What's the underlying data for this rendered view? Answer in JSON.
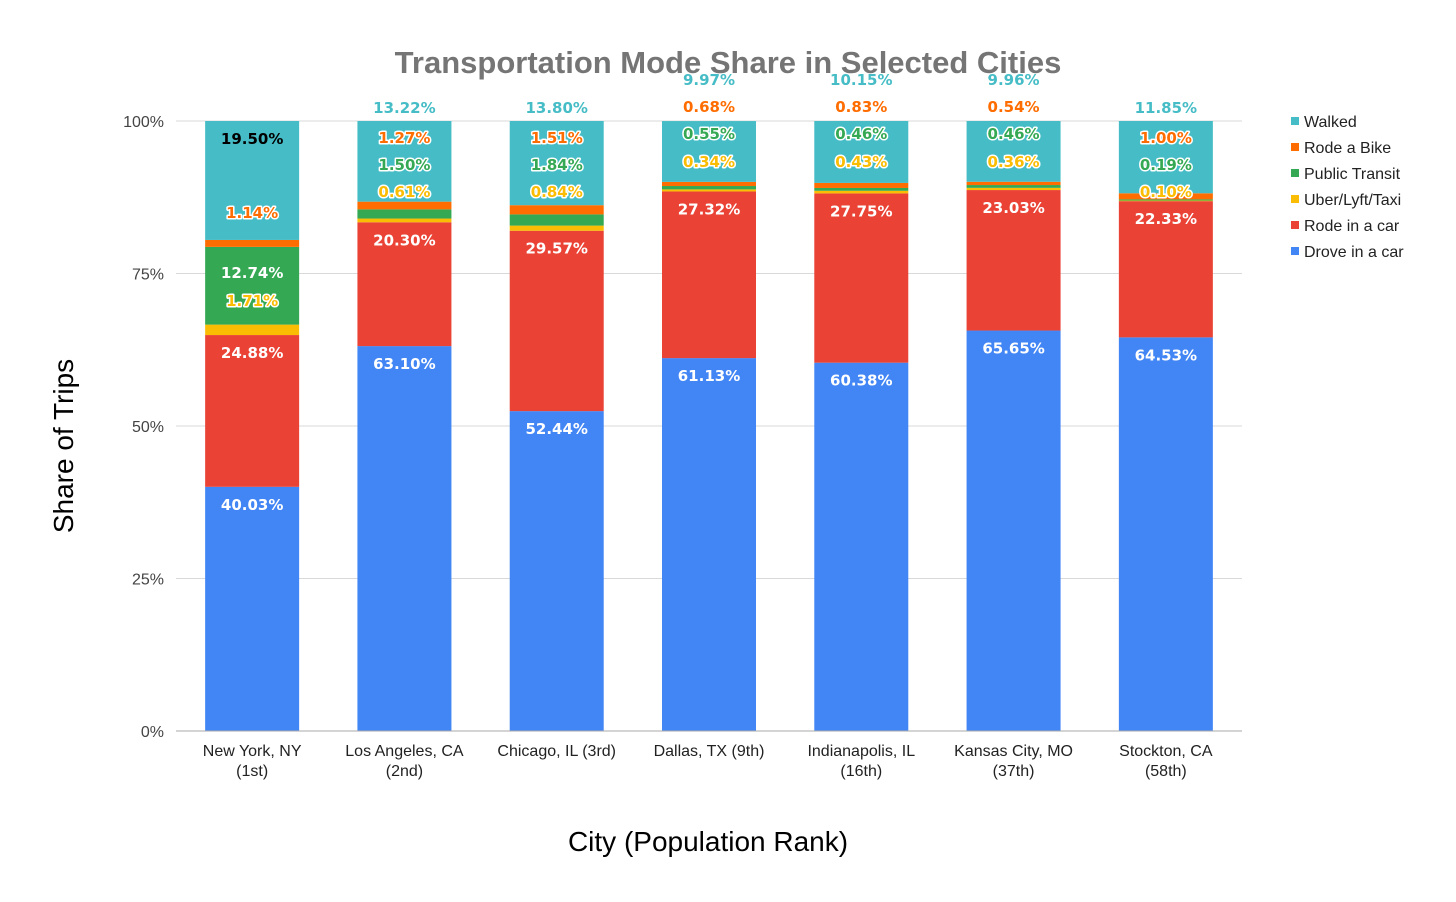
{
  "chart_data": {
    "type": "bar",
    "stacked": true,
    "normalized": true,
    "title": "Transportation Mode Share in Selected Cities",
    "xlabel": "City (Population Rank)",
    "ylabel": "Share of Trips",
    "ylim": [
      0,
      100
    ],
    "yticks": [
      "0%",
      "25%",
      "50%",
      "75%",
      "100%"
    ],
    "grid": true,
    "legend_position": "right",
    "categories": [
      [
        "New York, NY",
        "(1st)"
      ],
      [
        "Los Angeles, CA",
        "(2nd)"
      ],
      [
        "Chicago, IL (3rd)"
      ],
      [
        "Dallas, TX (9th)"
      ],
      [
        "Indianapolis, IL",
        "(16th)"
      ],
      [
        "Kansas City, MO",
        "(37th)"
      ],
      [
        "Stockton, CA",
        "(58th)"
      ]
    ],
    "series": [
      {
        "name": "Drove in a car",
        "color": "#4285F4",
        "label_color": "#ffffff",
        "values": [
          40.03,
          63.1,
          52.44,
          61.13,
          60.38,
          65.65,
          64.53
        ],
        "labels": [
          "40.03%",
          "63.10%",
          "52.44%",
          "61.13%",
          "60.38%",
          "65.65%",
          "64.53%"
        ]
      },
      {
        "name": "Rode in a car",
        "color": "#EA4335",
        "label_color": "#ffffff",
        "values": [
          24.88,
          20.3,
          29.57,
          27.32,
          27.75,
          23.03,
          22.33
        ],
        "labels": [
          "24.88%",
          "20.30%",
          "29.57%",
          "27.32%",
          "27.75%",
          "23.03%",
          "22.33%"
        ]
      },
      {
        "name": "Uber/Lyft/Taxi",
        "color": "#FBBC04",
        "label_color": "#FBBC04",
        "values": [
          1.71,
          0.61,
          0.84,
          0.34,
          0.43,
          0.36,
          0.1
        ],
        "labels": [
          "1.71%",
          "0.61%",
          "0.84%",
          "0.34%",
          "0.43%",
          "0.36%",
          "0.10%"
        ]
      },
      {
        "name": "Public Transit",
        "color": "#34A853",
        "label_color": "#ffffff",
        "values": [
          12.74,
          1.5,
          1.84,
          0.55,
          0.46,
          0.46,
          0.19
        ],
        "labels": [
          "12.74%",
          "1.50%",
          "1.84%",
          "0.55%",
          "0.46%",
          "0.46%",
          "0.19%"
        ]
      },
      {
        "name": "Rode a Bike",
        "color": "#FF6D01",
        "label_color": "#FF6D01",
        "values": [
          1.14,
          1.27,
          1.51,
          0.68,
          0.83,
          0.54,
          1.0
        ],
        "labels": [
          "1.14%",
          "1.27%",
          "1.51%",
          "0.68%",
          "0.83%",
          "0.54%",
          "1.00%"
        ]
      },
      {
        "name": "Walked",
        "color": "#46BDC6",
        "label_color": "#46BDC6",
        "values": [
          19.5,
          13.22,
          13.8,
          9.97,
          10.15,
          9.96,
          11.85
        ],
        "labels": [
          "19.50%",
          "13.22%",
          "13.80%",
          "9.97%",
          "10.15%",
          "9.96%",
          "11.85%"
        ]
      }
    ],
    "legend_order": [
      "Walked",
      "Rode a Bike",
      "Public Transit",
      "Uber/Lyft/Taxi",
      "Rode in a car",
      "Drove in a car"
    ]
  }
}
